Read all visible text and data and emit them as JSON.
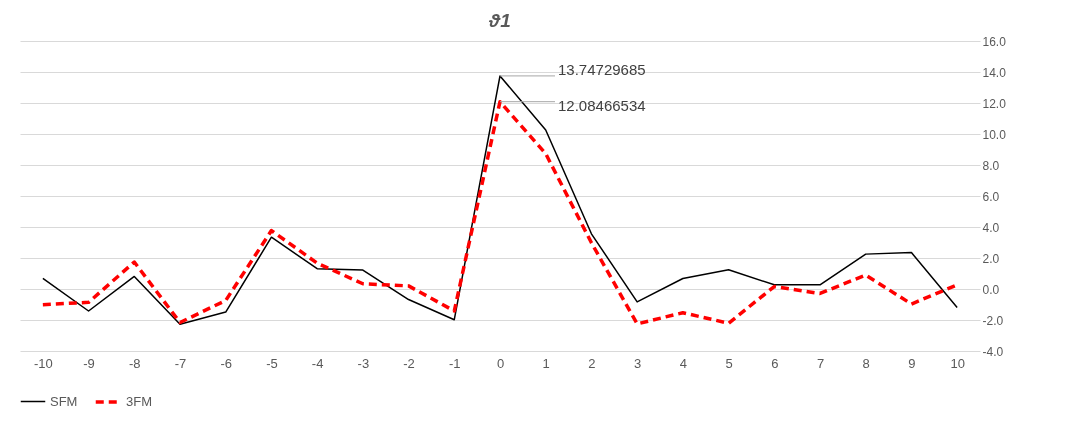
{
  "chart_data": {
    "type": "line",
    "title": "ϑ1",
    "categories": [
      "-10",
      "-9",
      "-8",
      "-7",
      "-6",
      "-5",
      "-4",
      "-3",
      "-2",
      "-1",
      "0",
      "1",
      "2",
      "3",
      "4",
      "5",
      "6",
      "7",
      "8",
      "9",
      "10"
    ],
    "series": [
      {
        "name": "SFM",
        "color": "#000000",
        "line_style": "solid",
        "values": [
          0.68,
          -1.42,
          0.81,
          -2.28,
          -1.49,
          3.34,
          1.31,
          1.22,
          -0.68,
          -1.98,
          13.74729685,
          10.26,
          3.56,
          -0.83,
          0.68,
          1.24,
          0.27,
          0.27,
          2.25,
          2.35,
          -1.2
        ]
      },
      {
        "name": "3FM",
        "color": "#ff0000",
        "line_style": "dashed",
        "values": [
          -1.01,
          -0.86,
          1.74,
          -2.16,
          -0.74,
          3.77,
          1.67,
          0.34,
          0.2,
          -1.42,
          12.08466534,
          8.73,
          2.98,
          -2.25,
          -1.53,
          -2.21,
          0.16,
          -0.29,
          0.9,
          -0.97,
          0.27
        ]
      }
    ],
    "ylim": [
      -4,
      16
    ],
    "yticks": [
      {
        "value": -4,
        "label": "-4.0"
      },
      {
        "value": -2,
        "label": "-2.0"
      },
      {
        "value": 0,
        "label": "0.0"
      },
      {
        "value": 2,
        "label": "2.0"
      },
      {
        "value": 4,
        "label": "4.0"
      },
      {
        "value": 6,
        "label": "6.0"
      },
      {
        "value": 8,
        "label": "8.0"
      },
      {
        "value": 10,
        "label": "10.0"
      },
      {
        "value": 12,
        "label": "12.0"
      },
      {
        "value": 14,
        "label": "14.0"
      },
      {
        "value": 16,
        "label": "16.0"
      }
    ],
    "grid": "y",
    "legend": "bottom",
    "marker": "none",
    "annotations": [
      {
        "text": "13.74729685",
        "x": "0",
        "y": 13.74729685
      },
      {
        "text": "12.08466534",
        "x": "0",
        "y": 12.08466534
      }
    ]
  }
}
